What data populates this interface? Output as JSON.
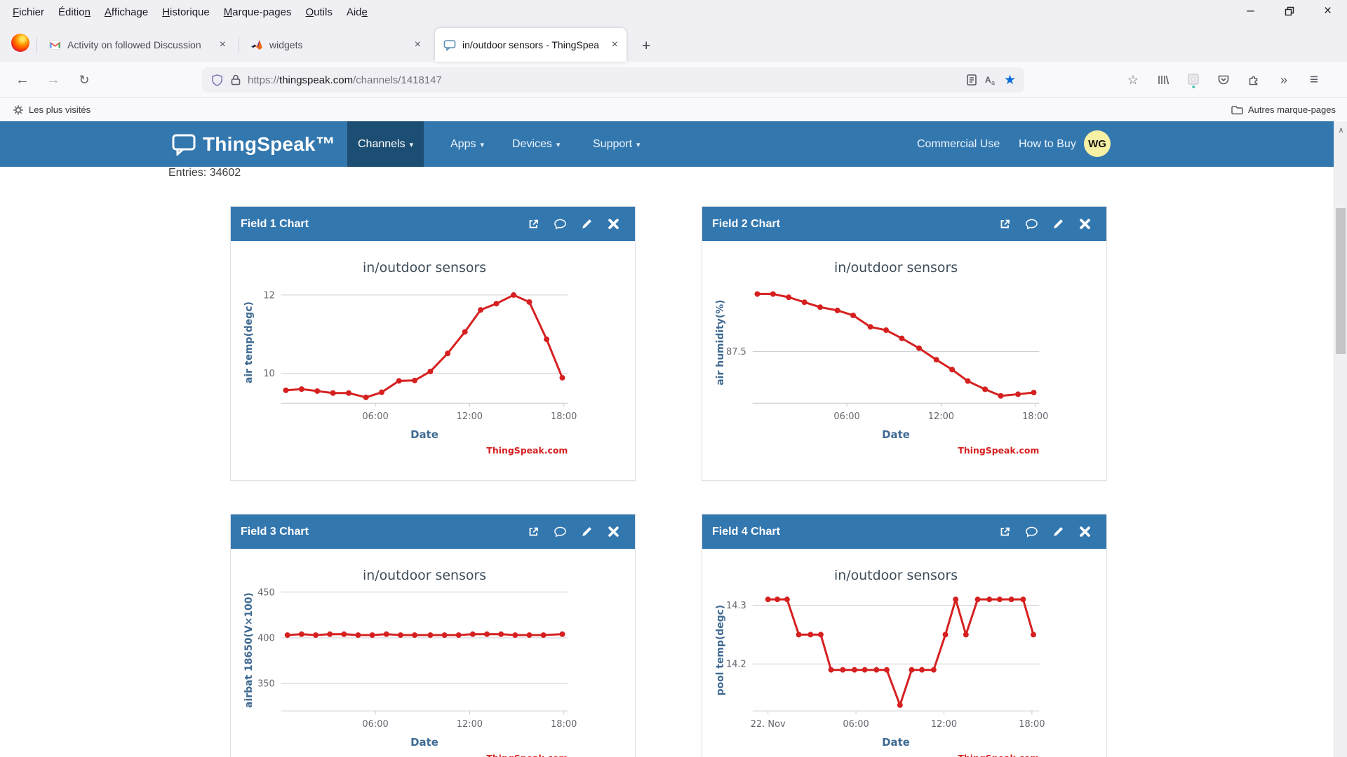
{
  "browser": {
    "menu": [
      {
        "label": "Fichier",
        "u": 0
      },
      {
        "label": "Édition",
        "u": 6
      },
      {
        "label": "Affichage",
        "u": 0
      },
      {
        "label": "Historique",
        "u": 0
      },
      {
        "label": "Marque-pages",
        "u": 0
      },
      {
        "label": "Outils",
        "u": 0
      },
      {
        "label": "Aide",
        "u": 3
      }
    ],
    "tabs": [
      {
        "label": "Activity on followed Discussion"
      },
      {
        "label": "widgets"
      },
      {
        "label": "in/outdoor sensors - ThingSpea"
      }
    ],
    "url": {
      "scheme": "https://",
      "domain": "thingspeak.com",
      "path": "/channels/1418147"
    },
    "bookmarks": {
      "left": "Les plus visités",
      "right": "Autres marque-pages"
    }
  },
  "navbar": {
    "brand": "ThingSpeak™",
    "items": [
      "Channels",
      "Apps",
      "Devices",
      "Support"
    ],
    "right_items": [
      "Commercial Use",
      "How to Buy"
    ],
    "avatar": "WG"
  },
  "page": {
    "entries": "Entries: 34602"
  },
  "cards": [
    {
      "title": "Field 1 Chart"
    },
    {
      "title": "Field 2 Chart"
    },
    {
      "title": "Field 3 Chart"
    },
    {
      "title": "Field 4 Chart"
    }
  ],
  "colors": {
    "navbar_blue": "#3377af",
    "navbar_active": "#1c4e73",
    "series_red": "#d62020",
    "watermark_red": "#d62020",
    "grid": "#d0d0d4",
    "tick_text": "#666670",
    "title_text": "#3e4c59",
    "axis_label": "#3f6a92"
  },
  "chart_data": [
    {
      "type": "line",
      "title": "in/outdoor sensors",
      "xlabel": "Date",
      "ylabel": "air temp(degc)",
      "watermark": "ThingSpeak.com",
      "color": "#d62020",
      "x": [
        0.3,
        1.3,
        2.3,
        3.3,
        4.3,
        5.4,
        6.4,
        7.5,
        8.5,
        9.5,
        10.6,
        11.7,
        12.7,
        13.7,
        14.8,
        15.8,
        16.9,
        17.9
      ],
      "y": [
        9.57,
        9.6,
        9.55,
        9.5,
        9.5,
        9.39,
        9.52,
        9.81,
        9.82,
        10.05,
        10.51,
        11.06,
        11.62,
        11.78,
        12.0,
        11.82,
        10.87,
        9.89
      ],
      "xlim": [
        0,
        18.25
      ],
      "ylim": [
        9.24,
        12.34
      ],
      "yticks": [
        {
          "v": 10,
          "label": "10"
        },
        {
          "v": 12,
          "label": "12"
        }
      ],
      "xticks": [
        {
          "v": 6,
          "label": "06:00"
        },
        {
          "v": 12,
          "label": "12:00"
        },
        {
          "v": 18,
          "label": "18:00"
        }
      ]
    },
    {
      "type": "line",
      "title": "in/outdoor sensors",
      "xlabel": "Date",
      "ylabel": "air humidity(%)",
      "watermark": "ThingSpeak.com",
      "color": "#d62020",
      "x": [
        0.3,
        1.3,
        2.3,
        3.3,
        4.3,
        5.4,
        6.4,
        7.5,
        8.5,
        9.5,
        10.6,
        11.7,
        12.7,
        13.7,
        14.8,
        15.8,
        16.9,
        17.9
      ],
      "y": [
        91.0,
        91.0,
        90.8,
        90.5,
        90.2,
        90.0,
        89.7,
        89.0,
        88.8,
        88.3,
        87.7,
        87.0,
        86.4,
        85.7,
        85.2,
        84.8,
        84.9,
        85.0
      ],
      "xlim": [
        0,
        18.25
      ],
      "ylim": [
        84.35,
        91.75
      ],
      "yticks": [
        {
          "v": 87.5,
          "label": "87.5"
        }
      ],
      "xticks": [
        {
          "v": 6,
          "label": "06:00"
        },
        {
          "v": 12,
          "label": "12:00"
        },
        {
          "v": 18,
          "label": "18:00"
        }
      ]
    },
    {
      "type": "line",
      "title": "in/outdoor sensors",
      "xlabel": "Date",
      "ylabel": "airbat 18650(V×100)",
      "watermark": "ThingSpeak.com",
      "color": "#d62020",
      "x": [
        0.4,
        1.3,
        2.2,
        3.1,
        4.0,
        4.9,
        5.8,
        6.7,
        7.6,
        8.5,
        9.5,
        10.4,
        11.3,
        12.2,
        13.1,
        14.0,
        14.9,
        15.8,
        16.7,
        17.9
      ],
      "y": [
        403,
        404,
        403,
        404,
        404,
        403,
        403,
        404,
        403,
        403,
        403,
        403,
        403,
        404,
        404,
        404,
        403,
        403,
        403,
        404
      ],
      "xlim": [
        0,
        18.25
      ],
      "ylim": [
        320,
        453
      ],
      "yticks": [
        {
          "v": 350,
          "label": "350"
        },
        {
          "v": 400,
          "label": "400"
        },
        {
          "v": 450,
          "label": "450"
        }
      ],
      "xticks": [
        {
          "v": 6,
          "label": "06:00"
        },
        {
          "v": 12,
          "label": "12:00"
        },
        {
          "v": 18,
          "label": "18:00"
        }
      ]
    },
    {
      "type": "line",
      "title": "in/outdoor sensors",
      "xlabel": "Date",
      "ylabel": "pool temp(degc)",
      "watermark": "ThingSpeak.com",
      "color": "#d62020",
      "x": [
        0,
        0.64,
        1.3,
        2.1,
        2.9,
        3.6,
        4.3,
        5.1,
        5.9,
        6.6,
        7.4,
        8.1,
        9.0,
        9.8,
        10.5,
        11.3,
        12.1,
        12.8,
        13.5,
        14.3,
        15.1,
        15.8,
        16.6,
        17.4,
        18.1
      ],
      "y": [
        14.31,
        14.31,
        14.31,
        14.25,
        14.25,
        14.25,
        14.19,
        14.19,
        14.19,
        14.19,
        14.19,
        14.19,
        14.13,
        14.19,
        14.19,
        14.19,
        14.25,
        14.31,
        14.25,
        14.31,
        14.31,
        14.31,
        14.31,
        14.31,
        14.25
      ],
      "xlim": [
        -1.05,
        18.5
      ],
      "ylim": [
        14.12,
        14.327
      ],
      "yticks": [
        {
          "v": 14.2,
          "label": "14.2"
        },
        {
          "v": 14.3,
          "label": "14.3"
        }
      ],
      "xticks": [
        {
          "v": 0,
          "label": "22. Nov"
        },
        {
          "v": 6,
          "label": "06:00"
        },
        {
          "v": 12,
          "label": "12:00"
        },
        {
          "v": 18,
          "label": "18:00"
        }
      ]
    }
  ]
}
